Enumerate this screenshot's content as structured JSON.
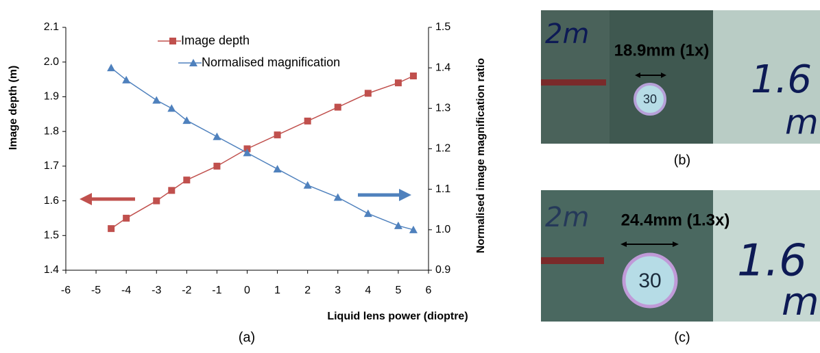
{
  "chart_data": {
    "type": "line",
    "xlabel": "Liquid lens power (dioptre)",
    "ylabel": "Image depth (m)",
    "y2label": "Normalised image magnification ratio",
    "x": [
      -4.5,
      -4,
      -3,
      -2.5,
      -2,
      -1,
      0,
      1,
      2,
      3,
      4,
      5,
      5.5
    ],
    "series": [
      {
        "name": "Image depth",
        "color": "#c0504d",
        "marker": "square",
        "values": [
          1.52,
          1.55,
          1.6,
          1.63,
          1.66,
          1.7,
          1.75,
          1.79,
          1.83,
          1.87,
          1.91,
          1.94,
          1.96
        ]
      },
      {
        "name": "Normalised magnification",
        "color": "#4f81bd",
        "marker": "triangle",
        "axis": "y2",
        "values": [
          1.4,
          1.37,
          1.32,
          1.3,
          1.27,
          1.23,
          1.19,
          1.15,
          1.11,
          1.08,
          1.04,
          1.01,
          1.0
        ]
      }
    ],
    "xlim": [
      -6,
      6
    ],
    "xticks": [
      -6,
      -5,
      -4,
      -3,
      -2,
      -1,
      0,
      1,
      2,
      3,
      4,
      5,
      6
    ],
    "ylim": [
      1.4,
      2.1
    ],
    "yticks": [
      1.4,
      1.5,
      1.6,
      1.7,
      1.8,
      1.9,
      {
        "value": 2.0,
        "label": "2.0"
      },
      2.1
    ],
    "y2lim": [
      0.9,
      1.5
    ],
    "y2ticks": [
      0.9,
      {
        "value": 1.0,
        "label": "1.0"
      },
      1.1,
      1.2,
      1.3,
      1.4,
      1.5
    ],
    "grid": false,
    "legend": "top"
  },
  "captions": [
    "(a)",
    "(b)",
    "(c)"
  ],
  "photos": [
    {
      "measurement": "18.9mm (1x)",
      "sign": "30",
      "notes": [
        "2m",
        "1.6",
        "m"
      ]
    },
    {
      "measurement": "24.4mm (1.3x)",
      "sign": "30",
      "notes": [
        "2m",
        "1.6",
        "m"
      ]
    }
  ]
}
